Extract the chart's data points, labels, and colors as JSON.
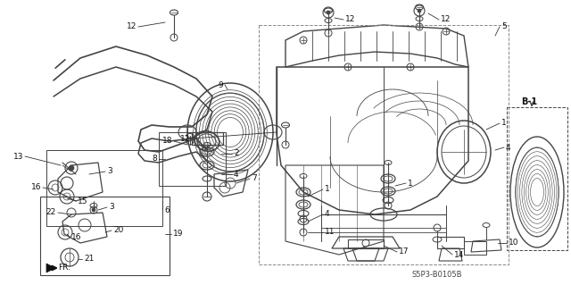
{
  "bg_color": "#ffffff",
  "fig_width": 6.4,
  "fig_height": 3.19,
  "diagram_code": "S5P3-B0105B",
  "lc": "#444444",
  "tc": "#111111",
  "thin": 0.6,
  "med": 0.9,
  "thick": 1.3
}
